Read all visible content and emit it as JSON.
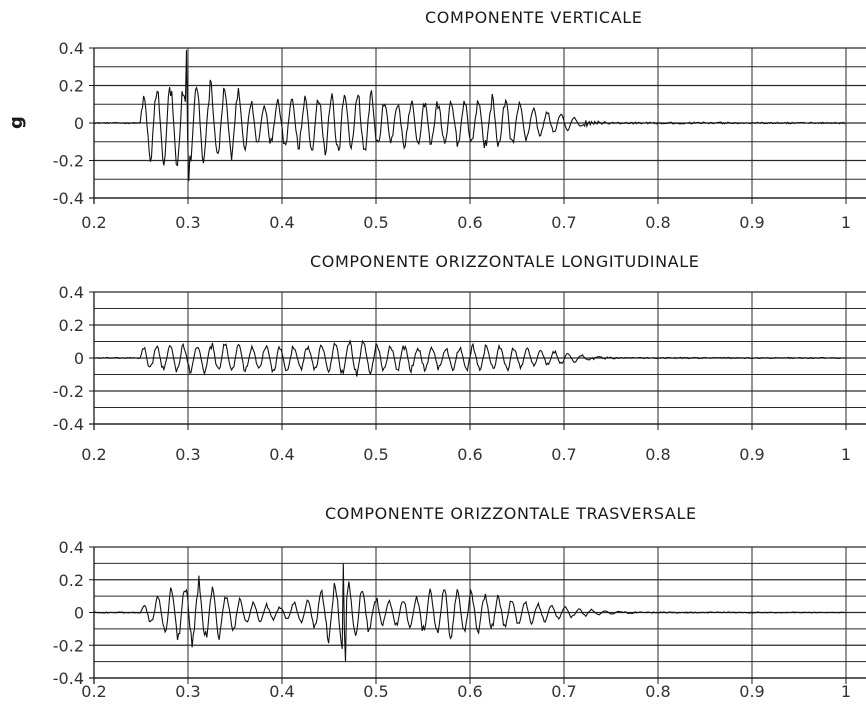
{
  "ylabel": "g",
  "chart_data": [
    {
      "type": "line",
      "title": "COMPONENTE VERTICALE",
      "ylabel": "g",
      "xlabel": "",
      "xlim": [
        0.2,
        1.0
      ],
      "ylim": [
        -0.4,
        0.4
      ],
      "x_ticks": [
        "0.2",
        "0.3",
        "0.4",
        "0.5",
        "0.6",
        "0.7",
        "0.8",
        "0.9",
        "1"
      ],
      "y_ticks": [
        "0.4",
        "0.2",
        "0",
        "-0.2",
        "-0.4"
      ],
      "grid": true,
      "signal": {
        "start": 0.25,
        "strong_end": 0.66,
        "fade_end": 0.72,
        "peak_max": 0.39,
        "peak_min": -0.31,
        "envelope": [
          [
            0.2,
            0.0
          ],
          [
            0.245,
            0.0
          ],
          [
            0.25,
            0.14
          ],
          [
            0.26,
            0.22
          ],
          [
            0.3,
            0.28
          ],
          [
            0.34,
            0.22
          ],
          [
            0.38,
            0.13
          ],
          [
            0.42,
            0.15
          ],
          [
            0.45,
            0.22
          ],
          [
            0.48,
            0.2
          ],
          [
            0.52,
            0.14
          ],
          [
            0.56,
            0.13
          ],
          [
            0.6,
            0.14
          ],
          [
            0.63,
            0.16
          ],
          [
            0.66,
            0.12
          ],
          [
            0.69,
            0.06
          ],
          [
            0.72,
            0.02
          ],
          [
            0.75,
            0.005
          ],
          [
            1.0,
            0.004
          ]
        ]
      }
    },
    {
      "type": "line",
      "title": "COMPONENTE ORIZZONTALE LONGITUDINALE",
      "xlabel": "",
      "xlim": [
        0.2,
        1.0
      ],
      "ylim": [
        -0.4,
        0.4
      ],
      "x_ticks": [
        "0.2",
        "0.3",
        "0.4",
        "0.5",
        "0.6",
        "0.7",
        "0.8",
        "0.9",
        "1"
      ],
      "y_ticks": [
        "0.4",
        "0.2",
        "0",
        "-0.2",
        "-0.4"
      ],
      "grid": true,
      "signal": {
        "start": 0.25,
        "strong_end": 0.68,
        "fade_end": 0.73,
        "peak_max": 0.15,
        "peak_min": -0.15,
        "envelope": [
          [
            0.2,
            0.0
          ],
          [
            0.245,
            0.0
          ],
          [
            0.25,
            0.08
          ],
          [
            0.3,
            0.1
          ],
          [
            0.35,
            0.1
          ],
          [
            0.4,
            0.09
          ],
          [
            0.45,
            0.1
          ],
          [
            0.48,
            0.12
          ],
          [
            0.52,
            0.09
          ],
          [
            0.58,
            0.08
          ],
          [
            0.62,
            0.09
          ],
          [
            0.66,
            0.07
          ],
          [
            0.7,
            0.04
          ],
          [
            0.73,
            0.01
          ],
          [
            0.76,
            0.004
          ],
          [
            1.0,
            0.003
          ]
        ]
      }
    },
    {
      "type": "line",
      "title": "COMPONENTE ORIZZONTALE TRASVERSALE",
      "xlabel": "",
      "xlim": [
        0.2,
        1.0
      ],
      "ylim": [
        -0.4,
        0.4
      ],
      "x_ticks": [
        "0.2",
        "0.3",
        "0.4",
        "0.5",
        "0.6",
        "0.7",
        "0.8",
        "0.9",
        "1"
      ],
      "y_ticks": [
        "0.4",
        "0.2",
        "0",
        "-0.2",
        "-0.4"
      ],
      "grid": true,
      "signal": {
        "start": 0.25,
        "strong_end": 0.7,
        "fade_end": 0.76,
        "peak_max": 0.3,
        "peak_min": -0.3,
        "envelope": [
          [
            0.2,
            0.0
          ],
          [
            0.245,
            0.0
          ],
          [
            0.25,
            0.03
          ],
          [
            0.27,
            0.12
          ],
          [
            0.29,
            0.22
          ],
          [
            0.31,
            0.24
          ],
          [
            0.33,
            0.18
          ],
          [
            0.36,
            0.08
          ],
          [
            0.4,
            0.04
          ],
          [
            0.43,
            0.1
          ],
          [
            0.46,
            0.25
          ],
          [
            0.48,
            0.18
          ],
          [
            0.51,
            0.08
          ],
          [
            0.55,
            0.14
          ],
          [
            0.58,
            0.18
          ],
          [
            0.62,
            0.12
          ],
          [
            0.66,
            0.08
          ],
          [
            0.7,
            0.04
          ],
          [
            0.74,
            0.015
          ],
          [
            0.78,
            0.004
          ],
          [
            1.0,
            0.002
          ]
        ]
      }
    }
  ]
}
